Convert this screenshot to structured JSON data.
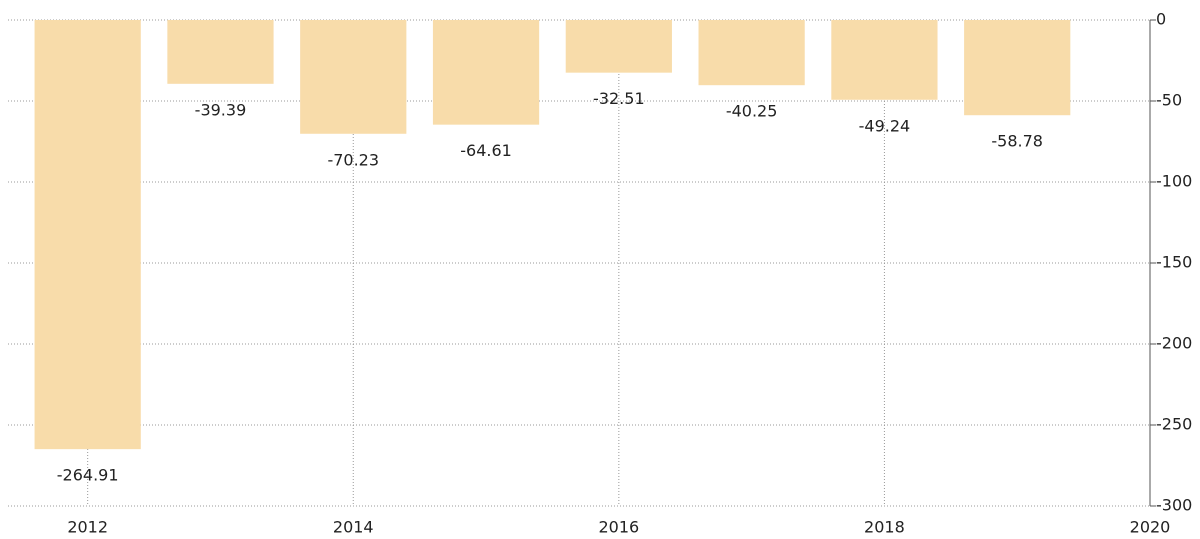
{
  "chart_data": {
    "type": "bar",
    "x": [
      2012,
      2013,
      2014,
      2015,
      2016,
      2017,
      2018,
      2019
    ],
    "values": [
      -264.91,
      -39.39,
      -70.23,
      -64.61,
      -32.51,
      -40.25,
      -49.24,
      -58.78
    ],
    "color": "#f8dcaa",
    "xlim": [
      2011.4,
      2020
    ],
    "xticks": [
      2012,
      2014,
      2016,
      2018,
      2020
    ],
    "ylim": [
      -300,
      0
    ],
    "yticks": [
      0,
      -50,
      -100,
      -150,
      -200,
      -250,
      -300
    ],
    "grid": true
  }
}
